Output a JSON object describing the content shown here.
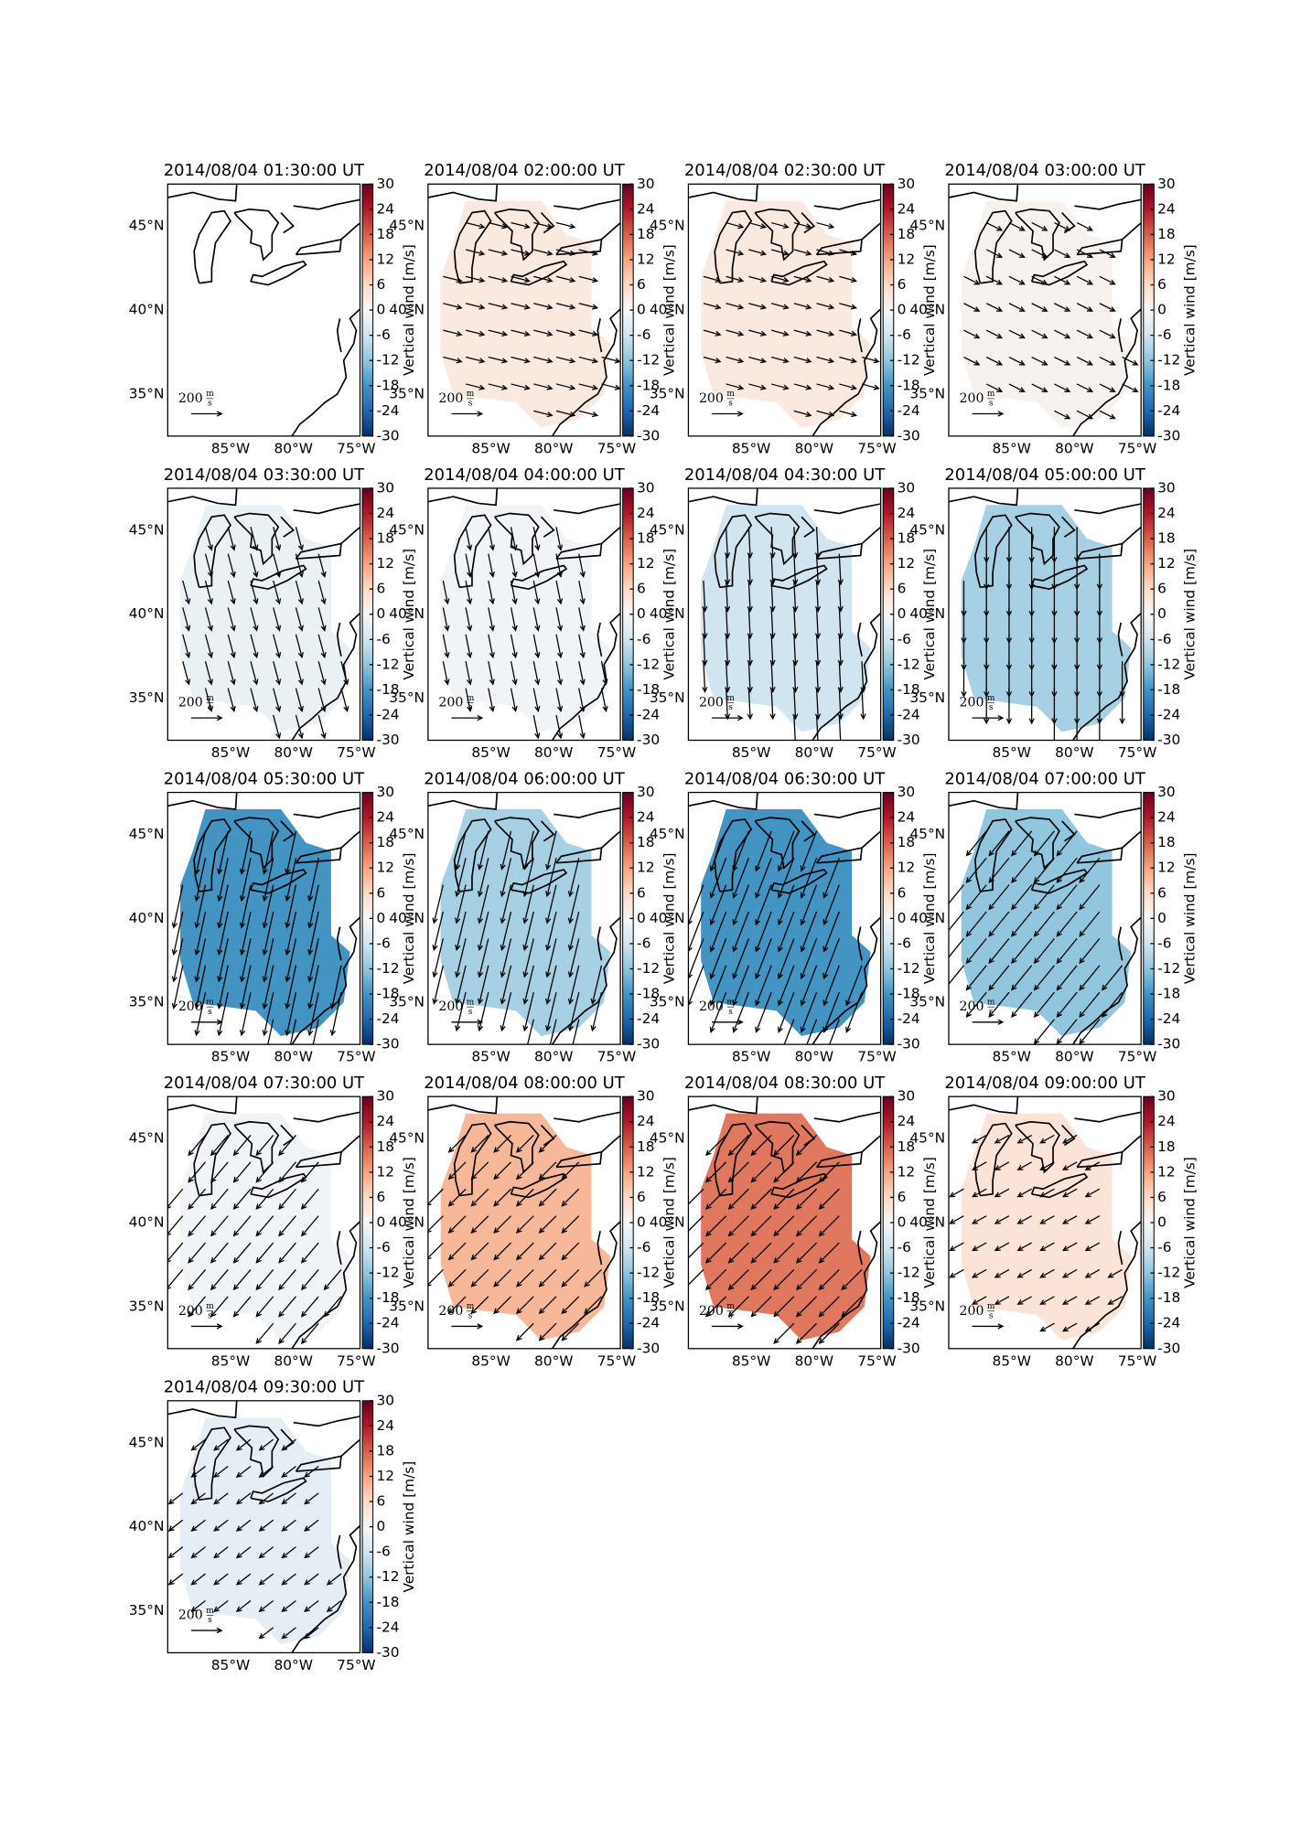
{
  "chart_data": [
    {
      "type": "vector-map",
      "title": "2014/08/04 01:30:00 UT",
      "vertical_wind": null,
      "u": null,
      "v": null
    },
    {
      "type": "vector-map",
      "title": "2014/08/04 02:00:00 UT",
      "vertical_wind": 3,
      "u": 120,
      "v": -30
    },
    {
      "type": "vector-map",
      "title": "2014/08/04 02:30:00 UT",
      "vertical_wind": 3,
      "u": 110,
      "v": -30
    },
    {
      "type": "vector-map",
      "title": "2014/08/04 03:00:00 UT",
      "vertical_wind": 1,
      "u": 100,
      "v": -50
    },
    {
      "type": "vector-map",
      "title": "2014/08/04 03:30:00 UT",
      "vertical_wind": -2,
      "u": 40,
      "v": -150
    },
    {
      "type": "vector-map",
      "title": "2014/08/04 04:00:00 UT",
      "vertical_wind": -1,
      "u": 30,
      "v": -150
    },
    {
      "type": "vector-map",
      "title": "2014/08/04 04:30:00 UT",
      "vertical_wind": -6,
      "u": 10,
      "v": -200
    },
    {
      "type": "vector-map",
      "title": "2014/08/04 05:00:00 UT",
      "vertical_wind": -10,
      "u": 0,
      "v": -230
    },
    {
      "type": "vector-map",
      "title": "2014/08/04 05:30:00 UT",
      "vertical_wind": -18,
      "u": -60,
      "v": -280
    },
    {
      "type": "vector-map",
      "title": "2014/08/04 06:00:00 UT",
      "vertical_wind": -10,
      "u": -60,
      "v": -250
    },
    {
      "type": "vector-map",
      "title": "2014/08/04 06:30:00 UT",
      "vertical_wind": -18,
      "u": -100,
      "v": -260
    },
    {
      "type": "vector-map",
      "title": "2014/08/04 07:00:00 UT",
      "vertical_wind": -12,
      "u": -130,
      "v": -160
    },
    {
      "type": "vector-map",
      "title": "2014/08/04 07:30:00 UT",
      "vertical_wind": -1,
      "u": -110,
      "v": -130
    },
    {
      "type": "vector-map",
      "title": "2014/08/04 08:00:00 UT",
      "vertical_wind": 10,
      "u": -110,
      "v": -110
    },
    {
      "type": "vector-map",
      "title": "2014/08/04 08:30:00 UT",
      "vertical_wind": 16,
      "u": -130,
      "v": -130
    },
    {
      "type": "vector-map",
      "title": "2014/08/04 09:00:00 UT",
      "vertical_wind": 4,
      "u": -90,
      "v": -50
    },
    {
      "type": "vector-map",
      "title": "2014/08/04 09:30:00 UT",
      "vertical_wind": -3,
      "u": -90,
      "v": -70
    }
  ],
  "axes": {
    "xlim": [
      -90,
      -74.7
    ],
    "ylim": [
      32.5,
      47.5
    ],
    "xticks": [
      {
        "value": -85,
        "label": "85°W"
      },
      {
        "value": -80,
        "label": "80°W"
      },
      {
        "value": -75,
        "label": "75°W"
      }
    ],
    "yticks": [
      {
        "value": 35,
        "label": "35°N"
      },
      {
        "value": 40,
        "label": "40°N"
      },
      {
        "value": 45,
        "label": "45°N"
      }
    ]
  },
  "colorbar": {
    "label": "Vertical wind [m/s]",
    "lim": [
      -30,
      30
    ],
    "ticks": [
      30,
      24,
      18,
      12,
      6,
      0,
      -6,
      -12,
      -18,
      -24,
      -30
    ]
  },
  "reference_arrow": {
    "value": 200,
    "label": "200",
    "unit_numerator": "m",
    "unit_denominator": "s"
  }
}
